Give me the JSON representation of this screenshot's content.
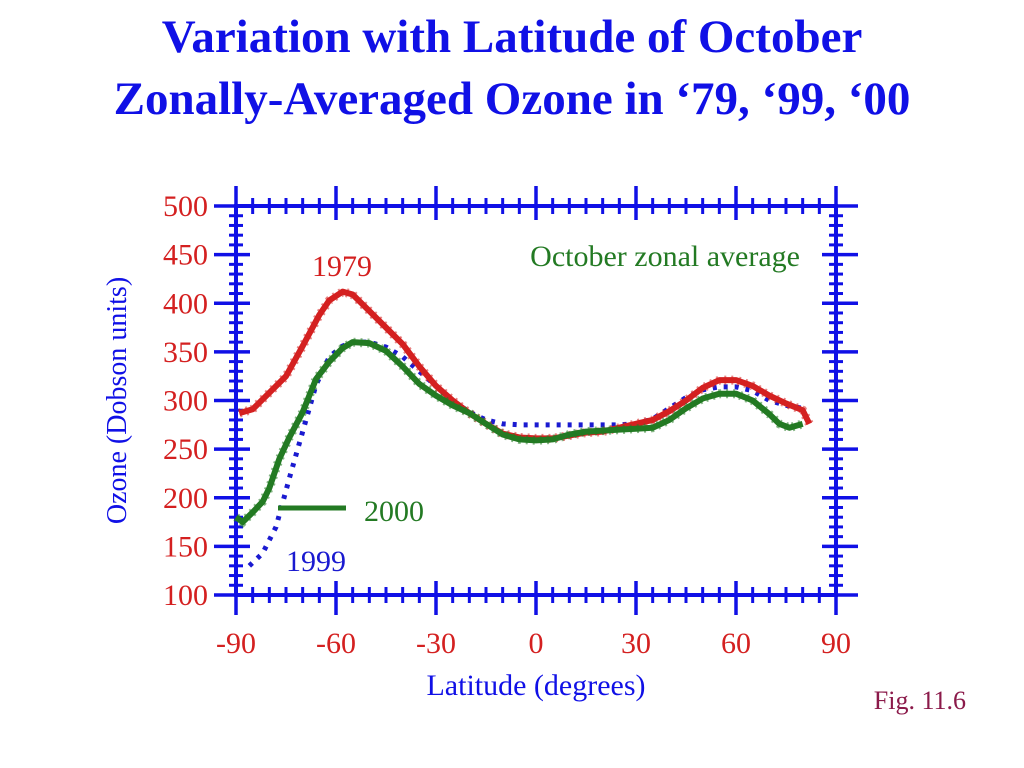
{
  "slide": {
    "title_line1": "Variation with Latitude of October",
    "title_line2": "Zonally-Averaged Ozone in ‘79, ‘99, ‘00",
    "figure_label": "Fig. 11.6"
  },
  "colors": {
    "title": "#1010e6",
    "axis": "#1010e6",
    "series_1979": "#d42020",
    "series_1999": "#1a1ad0",
    "series_2000": "#237a23",
    "annotation": "#237a23",
    "figure_label": "#8b1a4a"
  },
  "chart_data": {
    "type": "line",
    "xlabel": "Latitude (degrees)",
    "ylabel": "Ozone (Dobson units)",
    "xlim": [
      -90,
      90
    ],
    "ylim": [
      100,
      500
    ],
    "xticks": [
      -90,
      -60,
      -30,
      0,
      30,
      60,
      90
    ],
    "yticks": [
      100,
      150,
      200,
      250,
      300,
      350,
      400,
      450,
      500
    ],
    "annotation": "October zonal average",
    "series": [
      {
        "name": "1979",
        "style": "solid-beaded",
        "x": [
          -89,
          -85,
          -80,
          -75,
          -70,
          -65,
          -62,
          -58,
          -55,
          -50,
          -45,
          -40,
          -35,
          -30,
          -25,
          -20,
          -15,
          -10,
          -5,
          0,
          5,
          10,
          15,
          20,
          25,
          30,
          35,
          40,
          45,
          50,
          55,
          60,
          65,
          70,
          75,
          80,
          82
        ],
        "y": [
          287,
          291,
          308,
          325,
          356,
          388,
          403,
          412,
          409,
          392,
          375,
          358,
          335,
          315,
          300,
          287,
          276,
          266,
          262,
          261,
          261,
          264,
          267,
          268,
          272,
          276,
          280,
          289,
          300,
          313,
          321,
          321,
          315,
          305,
          297,
          290,
          276
        ]
      },
      {
        "name": "1999",
        "style": "dotted",
        "x": [
          -86,
          -82,
          -78,
          -74,
          -70,
          -66,
          -62,
          -58,
          -55,
          -50,
          -45,
          -40,
          -35,
          -30,
          -25,
          -20,
          -15,
          -10,
          -5,
          0,
          5,
          10,
          15,
          20,
          25,
          30,
          35,
          40,
          45,
          50,
          55,
          60,
          65,
          70,
          75,
          80
        ],
        "y": [
          130,
          143,
          170,
          220,
          268,
          316,
          345,
          356,
          360,
          360,
          355,
          345,
          330,
          315,
          300,
          288,
          280,
          276,
          275,
          275,
          275,
          275,
          275,
          275,
          275,
          276,
          281,
          292,
          303,
          311,
          314,
          314,
          310,
          300,
          295,
          292
        ]
      },
      {
        "name": "2000",
        "style": "solid-beaded",
        "x": [
          -90,
          -88,
          -85,
          -82,
          -80,
          -77,
          -74,
          -70,
          -66,
          -62,
          -58,
          -55,
          -50,
          -45,
          -40,
          -35,
          -30,
          -25,
          -20,
          -15,
          -10,
          -5,
          0,
          5,
          10,
          15,
          20,
          25,
          30,
          35,
          40,
          45,
          50,
          55,
          60,
          65,
          70,
          73,
          76,
          80
        ],
        "y": [
          180,
          175,
          185,
          196,
          210,
          240,
          262,
          288,
          322,
          340,
          354,
          360,
          359,
          351,
          335,
          317,
          305,
          295,
          287,
          276,
          265,
          260,
          259,
          260,
          265,
          268,
          269,
          270,
          271,
          272,
          280,
          292,
          302,
          307,
          307,
          300,
          286,
          276,
          272,
          276
        ]
      }
    ],
    "labels": [
      {
        "text": "1979",
        "series": "1979"
      },
      {
        "text": "1999",
        "series": "1999"
      },
      {
        "text": "2000",
        "series": "2000"
      }
    ]
  }
}
